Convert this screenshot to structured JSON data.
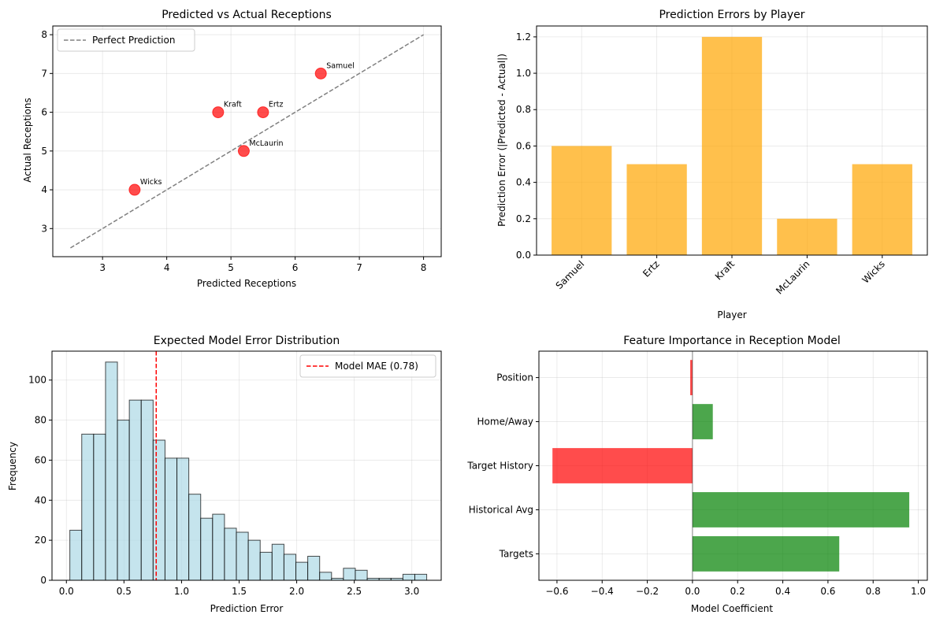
{
  "chart_data": [
    {
      "type": "scatter",
      "title": "Predicted vs Actual Receptions",
      "xlabel": "Predicted Receptions",
      "ylabel": "Actual Receptions",
      "xlim": [
        2.225,
        8.275
      ],
      "ylim": [
        2.275,
        8.225
      ],
      "xticks": [
        3,
        4,
        5,
        6,
        7,
        8
      ],
      "yticks": [
        3,
        4,
        5,
        6,
        7,
        8
      ],
      "points": [
        {
          "label": "Samuel",
          "x": 6.4,
          "y": 7
        },
        {
          "label": "Ertz",
          "x": 5.5,
          "y": 6
        },
        {
          "label": "Kraft",
          "x": 4.8,
          "y": 6
        },
        {
          "label": "McLaurin",
          "x": 5.2,
          "y": 5
        },
        {
          "label": "Wicks",
          "x": 3.5,
          "y": 4
        }
      ],
      "reference_line": {
        "label": "Perfect Prediction",
        "x": [
          2.5,
          8
        ],
        "y": [
          2.5,
          8
        ]
      },
      "legend": [
        "Perfect Prediction"
      ],
      "legend_position": "top-left",
      "colors": {
        "points": "#ff0000",
        "line": "#808080"
      }
    },
    {
      "type": "bar",
      "title": "Prediction Errors by Player",
      "xlabel": "Player",
      "ylabel": "Prediction Error (|Predicted - Actual|)",
      "categories": [
        "Samuel",
        "Ertz",
        "Kraft",
        "McLaurin",
        "Wicks"
      ],
      "values": [
        0.6,
        0.5,
        1.2,
        0.2,
        0.5
      ],
      "ylim": [
        0,
        1.26
      ],
      "yticks": [
        0.0,
        0.2,
        0.4,
        0.6,
        0.8,
        1.0,
        1.2
      ],
      "color": "#ffa500"
    },
    {
      "type": "bar",
      "subtype": "histogram",
      "title": "Expected Model Error Distribution",
      "xlabel": "Prediction Error",
      "ylabel": "Frequency",
      "bin_start": 0.03,
      "bin_width": 0.1033,
      "counts": [
        25,
        73,
        73,
        109,
        80,
        90,
        90,
        70,
        61,
        61,
        43,
        31,
        33,
        26,
        24,
        20,
        14,
        18,
        13,
        9,
        12,
        4,
        1,
        6,
        5,
        1,
        1,
        1,
        3,
        3
      ],
      "xlim": [
        -0.125,
        3.255
      ],
      "ylim": [
        0,
        114.45
      ],
      "xticks": [
        0.0,
        0.5,
        1.0,
        1.5,
        2.0,
        2.5,
        3.0
      ],
      "yticks": [
        0,
        20,
        40,
        60,
        80,
        100
      ],
      "vline": {
        "label": "Model MAE (0.78)",
        "x": 0.78
      },
      "legend": [
        "Model MAE (0.78)"
      ],
      "legend_position": "top-right",
      "colors": {
        "bars": "#add8e6",
        "vline": "#ff0000"
      }
    },
    {
      "type": "bar",
      "orientation": "horizontal",
      "title": "Feature Importance in Reception Model",
      "xlabel": "Model Coefficient",
      "ylabel": "",
      "categories": [
        "Targets",
        "Historical Avg",
        "Target History",
        "Home/Away",
        "Position"
      ],
      "values": [
        0.65,
        0.96,
        -0.62,
        0.09,
        -0.01
      ],
      "xlim": [
        -0.68,
        1.04
      ],
      "xticks": [
        -0.6,
        -0.4,
        -0.2,
        0.0,
        0.2,
        0.4,
        0.6,
        0.8,
        1.0
      ],
      "colors": {
        "positive": "#008000",
        "negative": "#ff0000"
      }
    }
  ]
}
